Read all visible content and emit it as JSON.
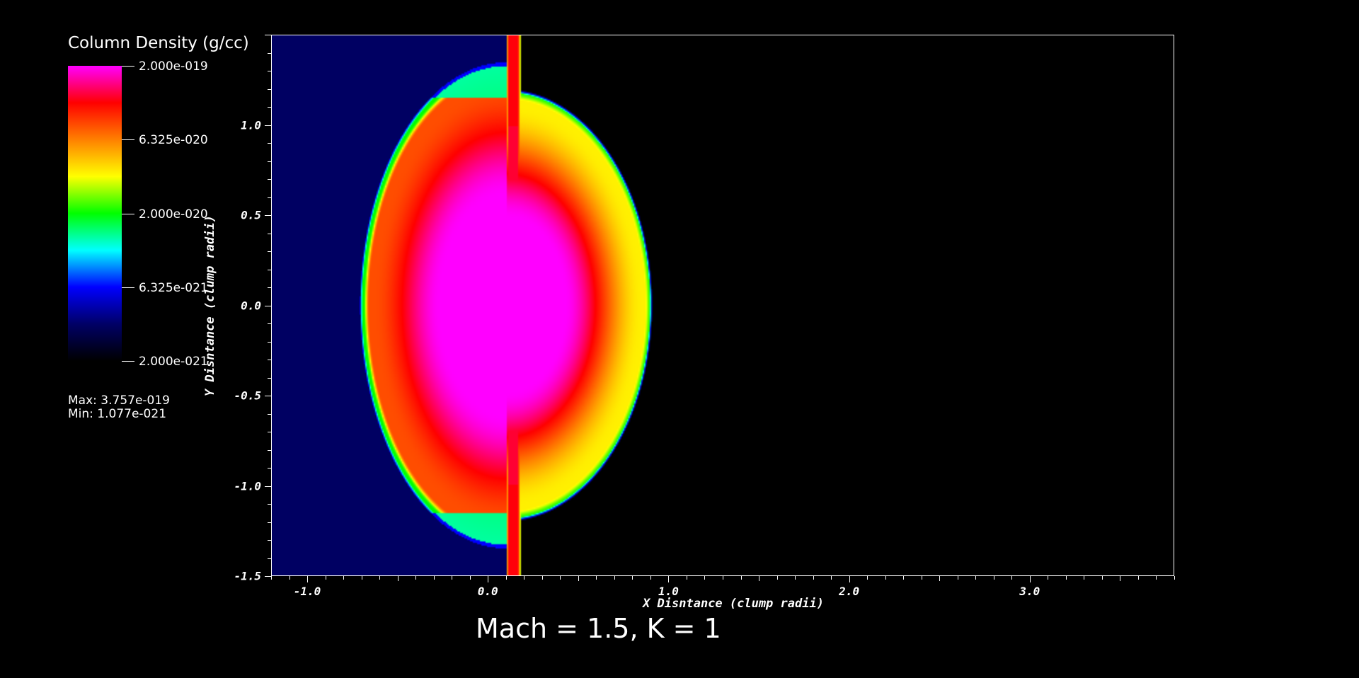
{
  "chart_data": {
    "type": "heatmap",
    "title": "",
    "xlabel": "X Disntance (clump radii)",
    "ylabel": "Y Disntance (clump radii)",
    "xlim": [
      -1.2,
      3.8
    ],
    "ylim": [
      -1.5,
      1.5
    ],
    "x_ticks": [
      "-1.0",
      "0.0",
      "1.0",
      "2.0",
      "3.0"
    ],
    "x_tick_values": [
      -1.0,
      0.0,
      1.0,
      2.0,
      3.0
    ],
    "y_ticks": [
      "1.0",
      "0.5",
      "0.0",
      "-0.5",
      "-1.0",
      "-1.5"
    ],
    "y_tick_values": [
      1.0,
      0.5,
      0.0,
      -0.5,
      -1.0,
      -1.5
    ],
    "colorbar": {
      "title": "Column Density (g/cc)",
      "scale": "log",
      "range": [
        2e-21,
        2e-19
      ],
      "labels": [
        "2.000e-019",
        "6.325e-020",
        "2.000e-020",
        "6.325e-021",
        "2.000e-021"
      ],
      "label_values": [
        2e-19,
        6.325e-20,
        2e-20,
        6.325e-21,
        2e-21
      ],
      "colormap": [
        "#000000",
        "#000066",
        "#0000ff",
        "#00ffff",
        "#00ff00",
        "#ffff00",
        "#ff8000",
        "#ff0000",
        "#ff00ff"
      ],
      "max_text": "Max:  3.757e-019",
      "min_text": "Min:  1.077e-021"
    },
    "features": {
      "clump_center_x": 0.1,
      "clump_radius_x": 0.81,
      "clump_radius_y": 1.35,
      "filament_x": [
        0.1,
        0.18
      ]
    }
  },
  "caption": "Mach = 1.5, K = 1"
}
